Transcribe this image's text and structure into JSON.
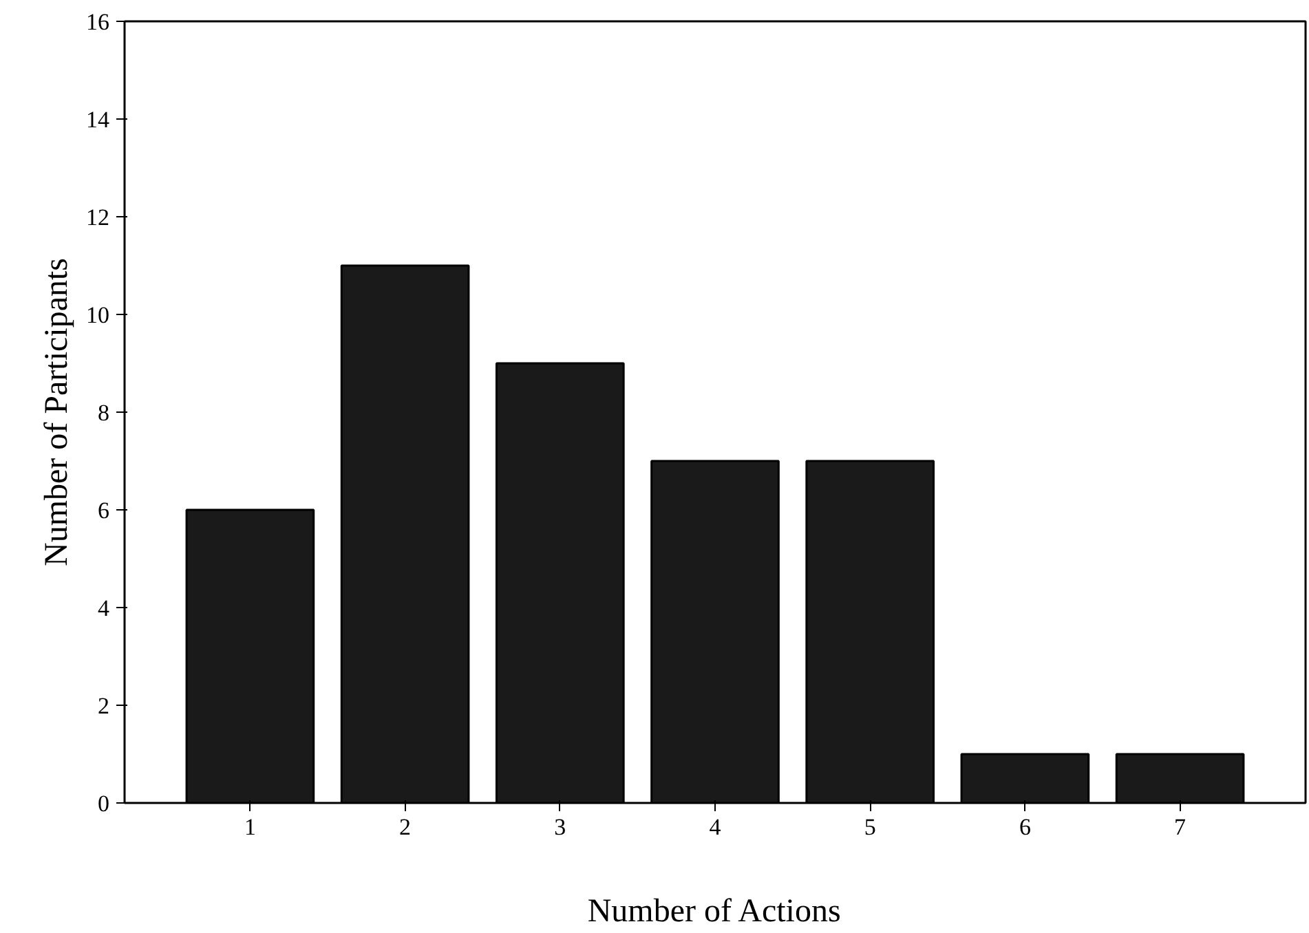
{
  "chart_data": {
    "type": "bar",
    "xlabel": "Number of Actions",
    "ylabel": "Number of Participants",
    "categories": [
      "1",
      "2",
      "3",
      "4",
      "5",
      "6",
      "7"
    ],
    "values": [
      6,
      11,
      9,
      7,
      7,
      1,
      1
    ],
    "color": "#1a1a1a",
    "ylim": [
      0,
      16
    ],
    "yticks": [
      0,
      2,
      4,
      6,
      8,
      10,
      12,
      14,
      16
    ],
    "grid": false
  }
}
